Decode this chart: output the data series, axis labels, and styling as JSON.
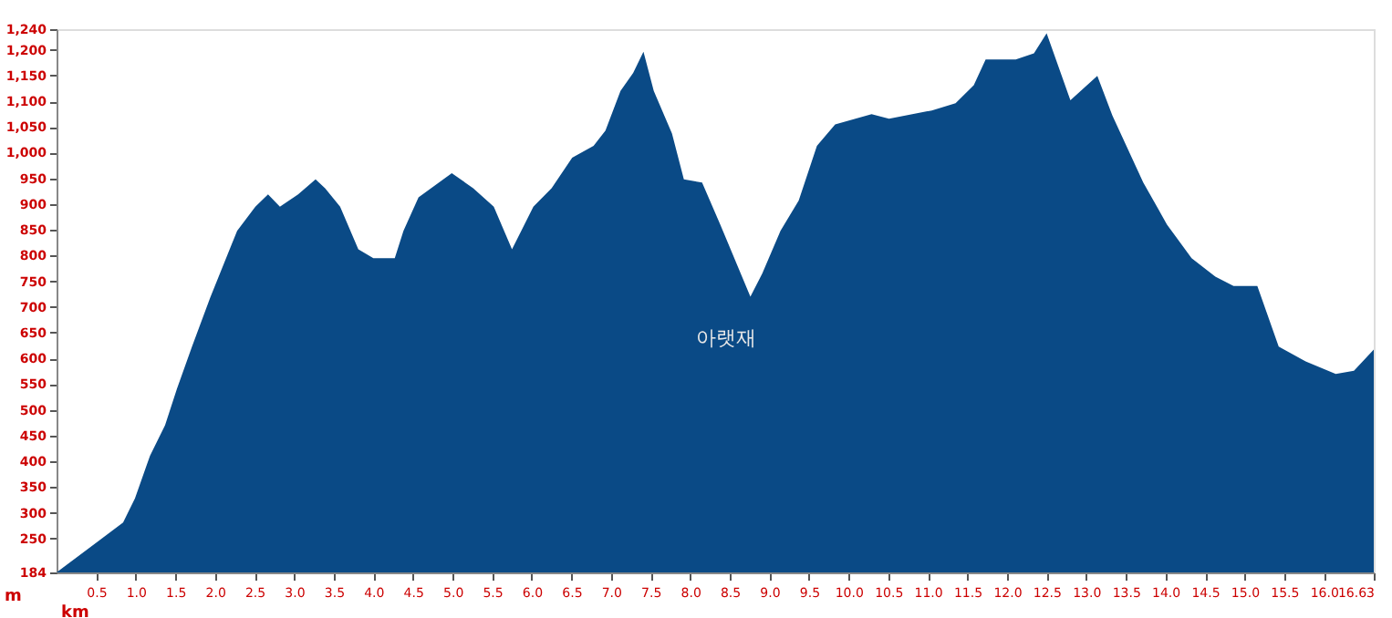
{
  "chart_data": {
    "type": "area",
    "xlabel": "km",
    "ylabel": "m",
    "x": [
      0,
      0.53,
      0.84,
      0.99,
      1.18,
      1.37,
      1.52,
      1.71,
      1.94,
      2.28,
      2.51,
      2.67,
      2.82,
      3.05,
      3.27,
      3.39,
      3.58,
      3.81,
      4.0,
      4.27,
      4.38,
      4.57,
      4.99,
      5.26,
      5.52,
      5.75,
      6.02,
      6.25,
      6.51,
      6.78,
      6.93,
      7.12,
      7.28,
      7.41,
      7.54,
      7.77,
      7.92,
      8.15,
      8.38,
      8.76,
      8.91,
      9.14,
      9.37,
      9.6,
      9.83,
      10.29,
      10.51,
      11.05,
      11.35,
      11.58,
      11.73,
      12.11,
      12.34,
      12.5,
      12.8,
      13.14,
      13.33,
      13.72,
      14.02,
      14.33,
      14.63,
      14.86,
      15.16,
      15.43,
      15.77,
      16.15,
      16.38,
      16.63
    ],
    "series": [
      {
        "color": "#0a4a86",
        "values": [
          184,
          245,
          281,
          328,
          411,
          470,
          541,
          623,
          718,
          848,
          895,
          919,
          895,
          919,
          948,
          931,
          895,
          812,
          795,
          795,
          848,
          913,
          960,
          931,
          895,
          812,
          895,
          931,
          990,
          1013,
          1043,
          1120,
          1155,
          1196,
          1120,
          1037,
          948,
          942,
          860,
          720,
          765,
          848,
          907,
          1013,
          1055,
          1075,
          1066,
          1082,
          1096,
          1131,
          1181,
          1181,
          1193,
          1232,
          1102,
          1149,
          1072,
          942,
          860,
          795,
          759,
          741,
          741,
          623,
          594,
          570,
          576,
          617
        ]
      }
    ],
    "xlim": [
      0,
      16.63
    ],
    "ylim": [
      184,
      1240
    ],
    "xticks": [
      {
        "value": 0.5,
        "label": "0.5"
      },
      {
        "value": 1,
        "label": "1.0"
      },
      1.5,
      {
        "value": 2,
        "label": "2.0"
      },
      2.5,
      {
        "value": 3,
        "label": "3.0"
      },
      3.5,
      {
        "value": 4,
        "label": "4.0"
      },
      4.5,
      {
        "value": 5,
        "label": "5.0"
      },
      5.5,
      {
        "value": 6,
        "label": "6.0"
      },
      6.5,
      {
        "value": 7,
        "label": "7.0"
      },
      7.5,
      {
        "value": 8,
        "label": "8.0"
      },
      8.5,
      {
        "value": 9,
        "label": "9.0"
      },
      9.5,
      {
        "value": 10,
        "label": "10.0"
      },
      10.5,
      {
        "value": 11,
        "label": "11.0"
      },
      11.5,
      {
        "value": 12,
        "label": "12.0"
      },
      12.5,
      {
        "value": 13,
        "label": "13.0"
      },
      13.5,
      {
        "value": 14,
        "label": "14.0"
      },
      14.5,
      {
        "value": 15,
        "label": "15.0"
      },
      15.5,
      {
        "value": 16,
        "label": "16.0"
      },
      16.63
    ],
    "yticks": [
      184,
      250,
      300,
      350,
      400,
      450,
      500,
      550,
      600,
      650,
      700,
      750,
      800,
      850,
      900,
      950,
      {
        "value": 1000,
        "label": "1,000"
      },
      {
        "value": 1050,
        "label": "1,050"
      },
      {
        "value": 1100,
        "label": "1,100"
      },
      {
        "value": 1150,
        "label": "1,150"
      },
      {
        "value": 1200,
        "label": "1,200"
      },
      {
        "value": 1240,
        "label": "1,240"
      }
    ],
    "annotations": [
      "아랫재"
    ],
    "grid": false
  }
}
